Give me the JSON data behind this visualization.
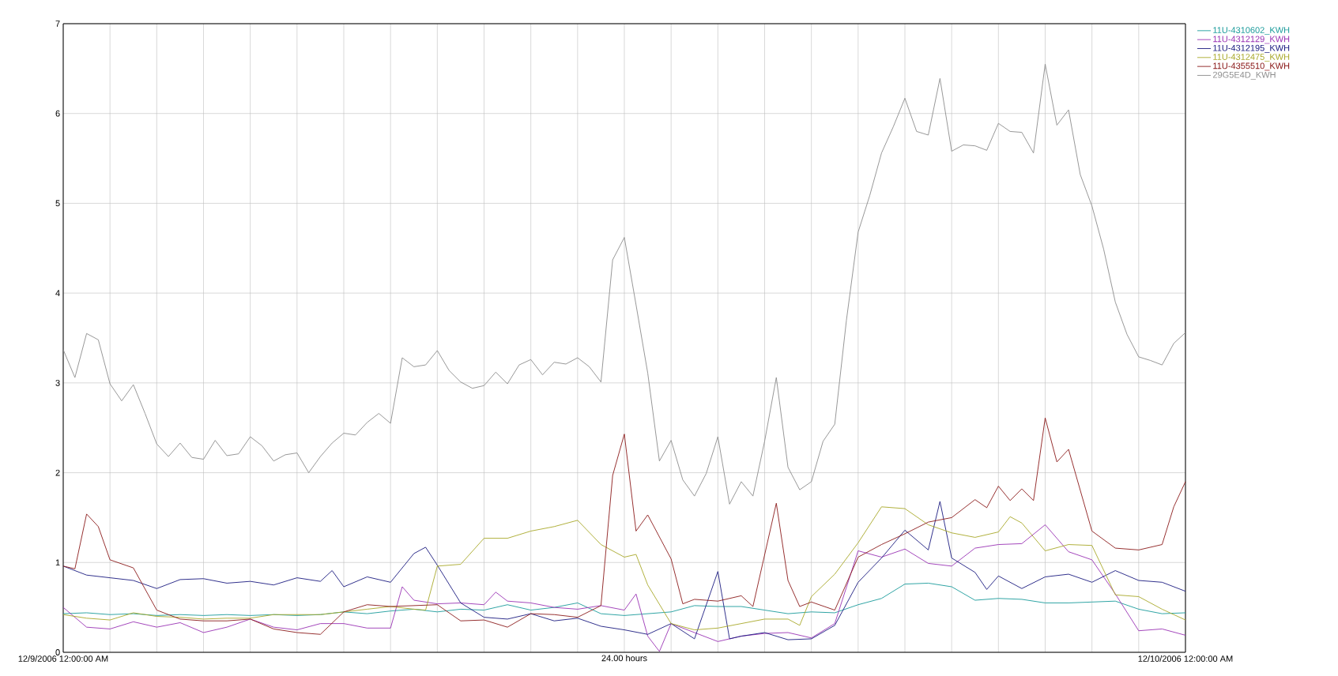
{
  "chart_data": {
    "type": "line",
    "xlim": [
      "2006-12-09T00:00",
      "2006-12-10T00:00"
    ],
    "ylim": [
      0,
      7
    ],
    "xticks": [
      {
        "value": "2006-12-09T00:00",
        "label": "12/9/2006 12:00:00 AM"
      },
      {
        "value": "2006-12-09T01:00",
        "label": null
      },
      {
        "value": "2006-12-09T02:00",
        "label": null
      },
      {
        "value": "2006-12-09T03:00",
        "label": null
      },
      {
        "value": "2006-12-09T04:00",
        "label": null
      },
      {
        "value": "2006-12-09T05:00",
        "label": null
      },
      {
        "value": "2006-12-09T06:00",
        "label": null
      },
      {
        "value": "2006-12-09T07:00",
        "label": null
      },
      {
        "value": "2006-12-09T08:00",
        "label": null
      },
      {
        "value": "2006-12-09T09:00",
        "label": null
      },
      {
        "value": "2006-12-09T10:00",
        "label": null
      },
      {
        "value": "2006-12-09T11:00",
        "label": null
      },
      {
        "value": "2006-12-09T12:00",
        "label": null
      },
      {
        "value": "2006-12-09T13:00",
        "label": null
      },
      {
        "value": "2006-12-09T14:00",
        "label": null
      },
      {
        "value": "2006-12-09T15:00",
        "label": null
      },
      {
        "value": "2006-12-09T16:00",
        "label": null
      },
      {
        "value": "2006-12-09T17:00",
        "label": null
      },
      {
        "value": "2006-12-09T18:00",
        "label": null
      },
      {
        "value": "2006-12-09T19:00",
        "label": null
      },
      {
        "value": "2006-12-09T20:00",
        "label": null
      },
      {
        "value": "2006-12-09T21:00",
        "label": null
      },
      {
        "value": "2006-12-09T22:00",
        "label": null
      },
      {
        "value": "2006-12-09T23:00",
        "label": null
      },
      {
        "value": "2006-12-10T00:00",
        "label": "12/10/2006 12:00:00 AM"
      }
    ],
    "yticks": [
      0,
      1,
      2,
      3,
      4,
      5,
      6,
      7
    ],
    "grid": true,
    "legend": "top right",
    "xlabel": "24.00 hours",
    "x": [
      "2006-12-09T00:00",
      "2006-12-09T00:30",
      "2006-12-09T01:00",
      "2006-12-09T01:30",
      "2006-12-09T02:00",
      "2006-12-09T02:30",
      "2006-12-09T03:00",
      "2006-12-09T03:30",
      "2006-12-09T04:00",
      "2006-12-09T04:30",
      "2006-12-09T05:00",
      "2006-12-09T05:30",
      "2006-12-09T06:00",
      "2006-12-09T06:30",
      "2006-12-09T07:00",
      "2006-12-09T07:30",
      "2006-12-09T08:00",
      "2006-12-09T08:30",
      "2006-12-09T09:00",
      "2006-12-09T09:30",
      "2006-12-09T10:00",
      "2006-12-09T10:30",
      "2006-12-09T11:00",
      "2006-12-09T11:30",
      "2006-12-09T12:00",
      "2006-12-09T12:30",
      "2006-12-09T13:00",
      "2006-12-09T13:30",
      "2006-12-09T14:00",
      "2006-12-09T14:30",
      "2006-12-09T15:00",
      "2006-12-09T15:30",
      "2006-12-09T16:00",
      "2006-12-09T16:30",
      "2006-12-09T17:00",
      "2006-12-09T17:30",
      "2006-12-09T18:00",
      "2006-12-09T18:30",
      "2006-12-09T19:00",
      "2006-12-09T19:30",
      "2006-12-09T20:00",
      "2006-12-09T20:30",
      "2006-12-09T21:00",
      "2006-12-09T21:30",
      "2006-12-09T22:00",
      "2006-12-09T22:30",
      "2006-12-09T23:00",
      "2006-12-09T23:30",
      "2006-12-10T00:00"
    ],
    "series": [
      {
        "name": "11U-4310602_KWH",
        "color": "#199a9a",
        "values": [
          0.43,
          0.44,
          0.42,
          0.43,
          0.41,
          0.42,
          0.41,
          0.42,
          0.41,
          0.42,
          0.41,
          0.42,
          0.45,
          0.43,
          0.46,
          0.48,
          0.45,
          0.48,
          0.47,
          0.53,
          0.47,
          0.5,
          0.55,
          0.43,
          0.41,
          0.43,
          0.45,
          0.52,
          0.51,
          0.51,
          0.47,
          0.43,
          0.45,
          0.44,
          0.53,
          0.6,
          0.76,
          0.77,
          0.73,
          0.58,
          0.6,
          0.59,
          0.55,
          0.55,
          0.56,
          0.57,
          0.48,
          0.43,
          0.44
        ]
      },
      {
        "name": "11U-4312129_KWH",
        "color": "#9932b4",
        "x": [
          "2006-12-09T00:00",
          "2006-12-09T00:30",
          "2006-12-09T01:00",
          "2006-12-09T01:30",
          "2006-12-09T02:00",
          "2006-12-09T02:30",
          "2006-12-09T03:00",
          "2006-12-09T03:30",
          "2006-12-09T04:00",
          "2006-12-09T04:30",
          "2006-12-09T05:00",
          "2006-12-09T05:30",
          "2006-12-09T06:00",
          "2006-12-09T06:30",
          "2006-12-09T07:00",
          "2006-12-09T07:15",
          "2006-12-09T07:30",
          "2006-12-09T08:00",
          "2006-12-09T08:30",
          "2006-12-09T09:00",
          "2006-12-09T09:15",
          "2006-12-09T09:30",
          "2006-12-09T10:00",
          "2006-12-09T10:30",
          "2006-12-09T11:00",
          "2006-12-09T11:30",
          "2006-12-09T12:00",
          "2006-12-09T12:15",
          "2006-12-09T12:30",
          "2006-12-09T12:45",
          "2006-12-09T13:00",
          "2006-12-09T13:30",
          "2006-12-09T14:00",
          "2006-12-09T14:30",
          "2006-12-09T15:00",
          "2006-12-09T15:30",
          "2006-12-09T16:00",
          "2006-12-09T16:30",
          "2006-12-09T17:00",
          "2006-12-09T17:30",
          "2006-12-09T18:00",
          "2006-12-09T18:30",
          "2006-12-09T19:00",
          "2006-12-09T19:30",
          "2006-12-09T20:00",
          "2006-12-09T20:30",
          "2006-12-09T21:00",
          "2006-12-09T21:30",
          "2006-12-09T22:00",
          "2006-12-09T22:30",
          "2006-12-09T23:00",
          "2006-12-09T23:30",
          "2006-12-10T00:00"
        ],
        "values": [
          0.5,
          0.28,
          0.26,
          0.34,
          0.28,
          0.33,
          0.22,
          0.28,
          0.37,
          0.28,
          0.25,
          0.32,
          0.32,
          0.27,
          0.27,
          0.73,
          0.58,
          0.54,
          0.55,
          0.53,
          0.67,
          0.57,
          0.55,
          0.5,
          0.48,
          0.52,
          0.47,
          0.65,
          0.18,
          0.01,
          0.32,
          0.22,
          0.12,
          0.18,
          0.21,
          0.22,
          0.16,
          0.32,
          1.13,
          1.06,
          1.15,
          0.99,
          0.96,
          1.16,
          1.2,
          1.21,
          1.42,
          1.12,
          1.03,
          0.65,
          0.24,
          0.26,
          0.19
        ]
      },
      {
        "name": "11U-4312195_KWH",
        "color": "#1a1a80",
        "x": [
          "2006-12-09T00:00",
          "2006-12-09T00:30",
          "2006-12-09T01:00",
          "2006-12-09T01:30",
          "2006-12-09T02:00",
          "2006-12-09T02:30",
          "2006-12-09T03:00",
          "2006-12-09T03:30",
          "2006-12-09T04:00",
          "2006-12-09T04:30",
          "2006-12-09T05:00",
          "2006-12-09T05:30",
          "2006-12-09T05:45",
          "2006-12-09T06:00",
          "2006-12-09T06:30",
          "2006-12-09T07:00",
          "2006-12-09T07:30",
          "2006-12-09T07:45",
          "2006-12-09T08:00",
          "2006-12-09T08:30",
          "2006-12-09T09:00",
          "2006-12-09T09:30",
          "2006-12-09T10:00",
          "2006-12-09T10:30",
          "2006-12-09T11:00",
          "2006-12-09T11:30",
          "2006-12-09T12:00",
          "2006-12-09T12:30",
          "2006-12-09T13:00",
          "2006-12-09T13:30",
          "2006-12-09T14:00",
          "2006-12-09T14:15",
          "2006-12-09T14:30",
          "2006-12-09T15:00",
          "2006-12-09T15:30",
          "2006-12-09T16:00",
          "2006-12-09T16:30",
          "2006-12-09T17:00",
          "2006-12-09T17:30",
          "2006-12-09T18:00",
          "2006-12-09T18:30",
          "2006-12-09T18:45",
          "2006-12-09T19:00",
          "2006-12-09T19:30",
          "2006-12-09T19:45",
          "2006-12-09T20:00",
          "2006-12-09T20:30",
          "2006-12-09T21:00",
          "2006-12-09T21:30",
          "2006-12-09T22:00",
          "2006-12-09T22:30",
          "2006-12-09T23:00",
          "2006-12-09T23:30",
          "2006-12-10T00:00"
        ],
        "values": [
          0.96,
          0.86,
          0.83,
          0.8,
          0.71,
          0.81,
          0.82,
          0.77,
          0.79,
          0.75,
          0.83,
          0.79,
          0.91,
          0.73,
          0.84,
          0.78,
          1.1,
          1.17,
          0.97,
          0.55,
          0.39,
          0.37,
          0.43,
          0.35,
          0.38,
          0.29,
          0.25,
          0.2,
          0.32,
          0.15,
          0.9,
          0.15,
          0.18,
          0.22,
          0.14,
          0.15,
          0.3,
          0.78,
          1.05,
          1.36,
          1.14,
          1.68,
          1.05,
          0.89,
          0.7,
          0.85,
          0.71,
          0.84,
          0.87,
          0.78,
          0.91,
          0.8,
          0.78,
          0.68
        ]
      },
      {
        "name": "11U-4312475_KWH",
        "color": "#a8a828",
        "x": [
          "2006-12-09T00:00",
          "2006-12-09T00:30",
          "2006-12-09T01:00",
          "2006-12-09T01:30",
          "2006-12-09T02:00",
          "2006-12-09T02:30",
          "2006-12-09T03:00",
          "2006-12-09T03:30",
          "2006-12-09T04:00",
          "2006-12-09T04:30",
          "2006-12-09T05:00",
          "2006-12-09T05:30",
          "2006-12-09T06:00",
          "2006-12-09T06:30",
          "2006-12-09T07:00",
          "2006-12-09T07:30",
          "2006-12-09T07:45",
          "2006-12-09T08:00",
          "2006-12-09T08:30",
          "2006-12-09T09:00",
          "2006-12-09T09:30",
          "2006-12-09T10:00",
          "2006-12-09T10:30",
          "2006-12-09T11:00",
          "2006-12-09T11:30",
          "2006-12-09T12:00",
          "2006-12-09T12:15",
          "2006-12-09T12:30",
          "2006-12-09T13:00",
          "2006-12-09T13:30",
          "2006-12-09T14:00",
          "2006-12-09T14:30",
          "2006-12-09T15:00",
          "2006-12-09T15:30",
          "2006-12-09T15:45",
          "2006-12-09T16:00",
          "2006-12-09T16:30",
          "2006-12-09T17:00",
          "2006-12-09T17:30",
          "2006-12-09T18:00",
          "2006-12-09T18:30",
          "2006-12-09T19:00",
          "2006-12-09T19:30",
          "2006-12-09T20:00",
          "2006-12-09T20:15",
          "2006-12-09T20:30",
          "2006-12-09T21:00",
          "2006-12-09T21:30",
          "2006-12-09T22:00",
          "2006-12-09T22:30",
          "2006-12-09T23:00",
          "2006-12-09T23:30",
          "2006-12-10T00:00"
        ],
        "values": [
          0.42,
          0.38,
          0.36,
          0.44,
          0.4,
          0.39,
          0.37,
          0.38,
          0.38,
          0.42,
          0.42,
          0.42,
          0.45,
          0.48,
          0.51,
          0.48,
          0.47,
          0.96,
          0.98,
          1.27,
          1.27,
          1.35,
          1.4,
          1.47,
          1.2,
          1.06,
          1.09,
          0.75,
          0.32,
          0.25,
          0.27,
          0.32,
          0.37,
          0.37,
          0.3,
          0.62,
          0.87,
          1.22,
          1.62,
          1.6,
          1.42,
          1.33,
          1.28,
          1.34,
          1.51,
          1.44,
          1.13,
          1.2,
          1.19,
          0.64,
          0.62,
          0.48,
          0.36
        ]
      },
      {
        "name": "11U-4355510_KWH",
        "color": "#8b1a1a",
        "x": [
          "2006-12-09T00:00",
          "2006-12-09T00:15",
          "2006-12-09T00:30",
          "2006-12-09T00:45",
          "2006-12-09T01:00",
          "2006-12-09T01:30",
          "2006-12-09T02:00",
          "2006-12-09T02:30",
          "2006-12-09T03:00",
          "2006-12-09T03:30",
          "2006-12-09T04:00",
          "2006-12-09T04:30",
          "2006-12-09T05:00",
          "2006-12-09T05:30",
          "2006-12-09T06:00",
          "2006-12-09T06:30",
          "2006-12-09T07:00",
          "2006-12-09T07:30",
          "2006-12-09T08:00",
          "2006-12-09T08:30",
          "2006-12-09T09:00",
          "2006-12-09T09:30",
          "2006-12-09T10:00",
          "2006-12-09T10:30",
          "2006-12-09T11:00",
          "2006-12-09T11:30",
          "2006-12-09T11:45",
          "2006-12-09T12:00",
          "2006-12-09T12:15",
          "2006-12-09T12:30",
          "2006-12-09T13:00",
          "2006-12-09T13:15",
          "2006-12-09T13:30",
          "2006-12-09T14:00",
          "2006-12-09T14:30",
          "2006-12-09T14:45",
          "2006-12-09T15:15",
          "2006-12-09T15:30",
          "2006-12-09T15:45",
          "2006-12-09T16:00",
          "2006-12-09T16:30",
          "2006-12-09T17:00",
          "2006-12-09T17:30",
          "2006-12-09T18:00",
          "2006-12-09T18:30",
          "2006-12-09T19:00",
          "2006-12-09T19:30",
          "2006-12-09T19:45",
          "2006-12-09T20:00",
          "2006-12-09T20:15",
          "2006-12-09T20:30",
          "2006-12-09T20:45",
          "2006-12-09T21:00",
          "2006-12-09T21:15",
          "2006-12-09T21:30",
          "2006-12-09T22:00",
          "2006-12-09T22:30",
          "2006-12-09T23:00",
          "2006-12-09T23:30",
          "2006-12-09T23:45",
          "2006-12-10T00:00"
        ],
        "values": [
          0.96,
          0.93,
          1.54,
          1.4,
          1.03,
          0.94,
          0.47,
          0.37,
          0.35,
          0.35,
          0.37,
          0.26,
          0.22,
          0.2,
          0.45,
          0.53,
          0.51,
          0.52,
          0.53,
          0.35,
          0.36,
          0.28,
          0.43,
          0.42,
          0.39,
          0.52,
          1.97,
          2.43,
          1.35,
          1.53,
          1.04,
          0.54,
          0.59,
          0.57,
          0.63,
          0.51,
          1.66,
          0.8,
          0.51,
          0.56,
          0.47,
          1.06,
          1.2,
          1.32,
          1.45,
          1.5,
          1.7,
          1.61,
          1.85,
          1.69,
          1.82,
          1.69,
          2.61,
          2.12,
          2.26,
          1.35,
          1.16,
          1.14,
          1.2,
          1.62,
          1.9
        ]
      },
      {
        "name": "29G5E4D_KWH",
        "color": "#8c8c8c",
        "x": [
          "2006-12-09T00:00",
          "2006-12-09T00:15",
          "2006-12-09T00:30",
          "2006-12-09T00:45",
          "2006-12-09T01:00",
          "2006-12-09T01:15",
          "2006-12-09T01:30",
          "2006-12-09T01:45",
          "2006-12-09T02:00",
          "2006-12-09T02:15",
          "2006-12-09T02:30",
          "2006-12-09T02:45",
          "2006-12-09T03:00",
          "2006-12-09T03:15",
          "2006-12-09T03:30",
          "2006-12-09T03:45",
          "2006-12-09T04:00",
          "2006-12-09T04:15",
          "2006-12-09T04:30",
          "2006-12-09T04:45",
          "2006-12-09T05:00",
          "2006-12-09T05:15",
          "2006-12-09T05:30",
          "2006-12-09T05:45",
          "2006-12-09T06:00",
          "2006-12-09T06:15",
          "2006-12-09T06:30",
          "2006-12-09T06:45",
          "2006-12-09T07:00",
          "2006-12-09T07:15",
          "2006-12-09T07:30",
          "2006-12-09T07:45",
          "2006-12-09T08:00",
          "2006-12-09T08:15",
          "2006-12-09T08:30",
          "2006-12-09T08:45",
          "2006-12-09T09:00",
          "2006-12-09T09:15",
          "2006-12-09T09:30",
          "2006-12-09T09:45",
          "2006-12-09T10:00",
          "2006-12-09T10:15",
          "2006-12-09T10:30",
          "2006-12-09T10:45",
          "2006-12-09T11:00",
          "2006-12-09T11:15",
          "2006-12-09T11:30",
          "2006-12-09T11:45",
          "2006-12-09T12:00",
          "2006-12-09T12:15",
          "2006-12-09T12:30",
          "2006-12-09T12:45",
          "2006-12-09T13:00",
          "2006-12-09T13:15",
          "2006-12-09T13:30",
          "2006-12-09T13:45",
          "2006-12-09T14:00",
          "2006-12-09T14:15",
          "2006-12-09T14:30",
          "2006-12-09T14:45",
          "2006-12-09T15:00",
          "2006-12-09T15:15",
          "2006-12-09T15:30",
          "2006-12-09T15:45",
          "2006-12-09T16:00",
          "2006-12-09T16:15",
          "2006-12-09T16:30",
          "2006-12-09T16:45",
          "2006-12-09T17:00",
          "2006-12-09T17:15",
          "2006-12-09T17:30",
          "2006-12-09T17:45",
          "2006-12-09T18:00",
          "2006-12-09T18:15",
          "2006-12-09T18:30",
          "2006-12-09T18:45",
          "2006-12-09T19:00",
          "2006-12-09T19:15",
          "2006-12-09T19:30",
          "2006-12-09T19:45",
          "2006-12-09T20:00",
          "2006-12-09T20:15",
          "2006-12-09T20:30",
          "2006-12-09T20:45",
          "2006-12-09T21:00",
          "2006-12-09T21:15",
          "2006-12-09T21:30",
          "2006-12-09T21:45",
          "2006-12-09T22:00",
          "2006-12-09T22:15",
          "2006-12-09T22:30",
          "2006-12-09T22:45",
          "2006-12-09T23:00",
          "2006-12-09T23:15",
          "2006-12-09T23:30",
          "2006-12-09T23:45",
          "2006-12-10T00:00"
        ],
        "values": [
          3.37,
          3.06,
          3.55,
          3.48,
          2.99,
          2.8,
          2.98,
          2.66,
          2.32,
          2.18,
          2.33,
          2.17,
          2.15,
          2.36,
          2.19,
          2.21,
          2.4,
          2.3,
          2.13,
          2.2,
          2.22,
          2.0,
          2.18,
          2.33,
          2.44,
          2.42,
          2.56,
          2.66,
          2.55,
          3.28,
          3.18,
          3.2,
          3.36,
          3.14,
          3.01,
          2.94,
          2.97,
          3.12,
          2.99,
          3.2,
          3.26,
          3.09,
          3.23,
          3.21,
          3.28,
          3.18,
          3.01,
          4.37,
          4.62,
          3.87,
          3.11,
          2.13,
          2.36,
          1.92,
          1.74,
          1.99,
          2.4,
          1.65,
          1.9,
          1.74,
          2.35,
          3.06,
          2.06,
          1.81,
          1.9,
          2.35,
          2.54,
          3.7,
          4.68,
          5.09,
          5.56,
          5.85,
          6.17,
          5.8,
          5.76,
          6.39,
          5.58,
          5.65,
          5.64,
          5.59,
          5.89,
          5.8,
          5.79,
          5.56,
          6.55,
          5.87,
          6.04,
          5.32,
          4.97,
          4.49,
          3.9,
          3.54,
          3.29,
          3.25,
          3.2,
          3.44,
          3.56
        ]
      }
    ]
  }
}
